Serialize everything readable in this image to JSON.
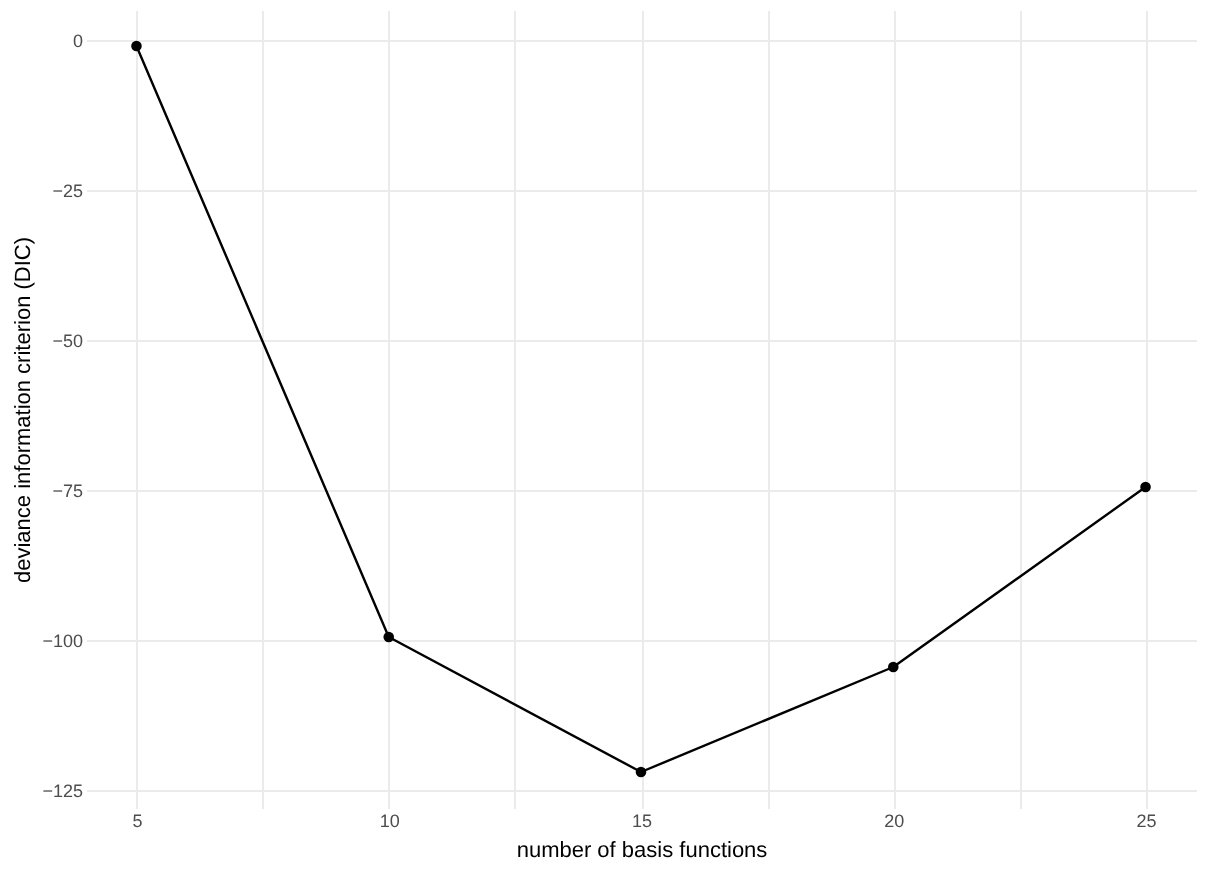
{
  "chart_data": {
    "type": "line",
    "xlabel": "number of basis functions",
    "ylabel": "deviance information criterion (DIC)",
    "x": [
      5,
      10,
      15,
      20,
      25
    ],
    "series": [
      {
        "color": "#000000",
        "values": [
          -1,
          -99.5,
          -122,
          -104.5,
          -74.5
        ]
      }
    ],
    "xlim": [
      4,
      26
    ],
    "ylim": [
      -128,
      5
    ],
    "xticks": [
      5,
      {
        "value": 7.5,
        "label": null
      },
      10,
      {
        "value": 12.5,
        "label": null
      },
      15,
      {
        "value": 17.5,
        "label": null
      },
      20,
      {
        "value": 22.5,
        "label": null
      },
      25
    ],
    "yticks": [
      {
        "value": -125,
        "label": "−125"
      },
      {
        "value": -100,
        "label": "−100"
      },
      {
        "value": -75,
        "label": "−75"
      },
      {
        "value": -50,
        "label": "−50"
      },
      {
        "value": -25,
        "label": "−25"
      },
      0
    ],
    "grid": true,
    "marker": "circle",
    "line_style": "solid"
  }
}
